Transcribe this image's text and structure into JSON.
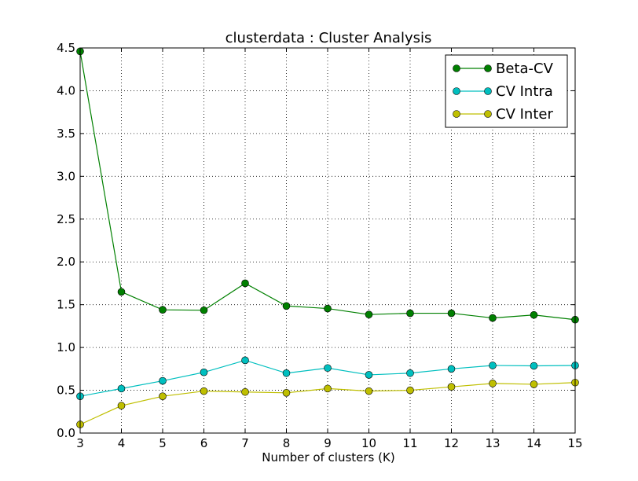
{
  "chart_data": {
    "type": "line",
    "title": "clusterdata : Cluster Analysis",
    "xlabel": "Number of clusters (K)",
    "ylabel": "",
    "x": [
      3,
      4,
      5,
      6,
      7,
      8,
      9,
      10,
      11,
      12,
      13,
      14,
      15
    ],
    "xlim": [
      3,
      15
    ],
    "ylim": [
      0,
      4.5
    ],
    "x_ticks": [
      "3",
      "4",
      "5",
      "6",
      "7",
      "8",
      "9",
      "10",
      "11",
      "12",
      "13",
      "14",
      "15"
    ],
    "y_ticks": [
      "0.0",
      "0.5",
      "1.0",
      "1.5",
      "2.0",
      "2.5",
      "3.0",
      "3.5",
      "4.0",
      "4.5"
    ],
    "grid": true,
    "legend_position": "top-right",
    "series": [
      {
        "name": "Beta-CV",
        "color": "#008000",
        "values": [
          4.46,
          1.65,
          1.44,
          1.435,
          1.75,
          1.485,
          1.455,
          1.385,
          1.4,
          1.4,
          1.345,
          1.38,
          1.325
        ]
      },
      {
        "name": "CV Intra",
        "color": "#00bfbf",
        "values": [
          0.43,
          0.52,
          0.61,
          0.71,
          0.85,
          0.7,
          0.76,
          0.68,
          0.7,
          0.75,
          0.79,
          0.785,
          0.79
        ]
      },
      {
        "name": "CV Inter",
        "color": "#bfbf00",
        "values": [
          0.1,
          0.32,
          0.43,
          0.49,
          0.48,
          0.47,
          0.52,
          0.49,
          0.5,
          0.54,
          0.58,
          0.57,
          0.59
        ]
      }
    ]
  }
}
